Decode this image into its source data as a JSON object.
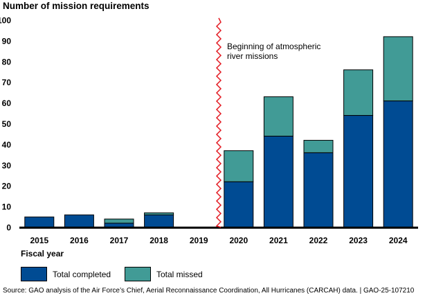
{
  "chart_data": {
    "type": "bar",
    "stacked": true,
    "ylabel": "Number of mission requirements",
    "xlabel": "Fiscal year",
    "ylim": [
      0,
      100
    ],
    "yticks": [
      0,
      10,
      20,
      30,
      40,
      50,
      60,
      70,
      80,
      90,
      100
    ],
    "categories": [
      "2015",
      "2016",
      "2017",
      "2018",
      "2019",
      "2020",
      "2021",
      "2022",
      "2023",
      "2024"
    ],
    "series": [
      {
        "name": "Total completed",
        "color": "#004b93",
        "values": [
          5,
          6,
          2,
          6,
          0,
          22,
          44,
          36,
          54,
          61
        ]
      },
      {
        "name": "Total missed",
        "color": "#419b96",
        "values": [
          0,
          0,
          2,
          1,
          0,
          15,
          19,
          6,
          22,
          31
        ]
      }
    ],
    "annotation": {
      "text_line1": "Beginning of atmospheric",
      "text_line2": "river missions",
      "between": [
        "2019",
        "2020"
      ],
      "line_color": "#e31b23"
    },
    "legend_position": "bottom-left",
    "grid": false
  },
  "source": "Source: GAO analysis of the Air Force’s Chief, Aerial Reconnaissance Coordination, All Hurricanes (CARCAH) data.  |  GAO-25-107210"
}
